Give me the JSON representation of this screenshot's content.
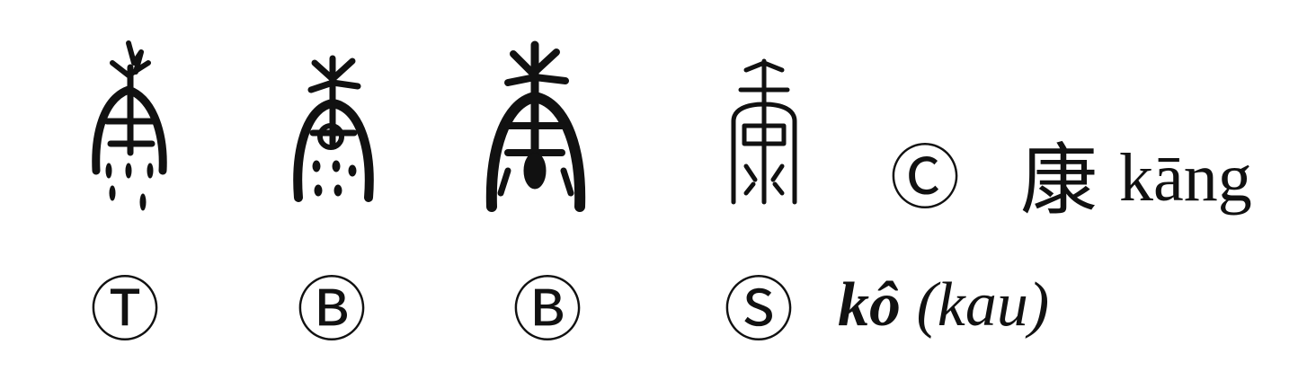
{
  "entry": {
    "modern_label": "Ⓒ",
    "character": "康",
    "pinyin": "kāng"
  },
  "script_forms": [
    {
      "label": "Ⓣ",
      "glyph": "ancient-kang-glyph-1"
    },
    {
      "label": "Ⓑ",
      "glyph": "ancient-kang-glyph-2"
    },
    {
      "label": "Ⓑ",
      "glyph": "ancient-kang-glyph-3"
    },
    {
      "label": "Ⓢ",
      "glyph": "seal-kang-glyph"
    }
  ],
  "reading": {
    "main": "kô",
    "alt": "(kau)"
  },
  "colors": {
    "ink": "#111111",
    "background": "#ffffff"
  }
}
